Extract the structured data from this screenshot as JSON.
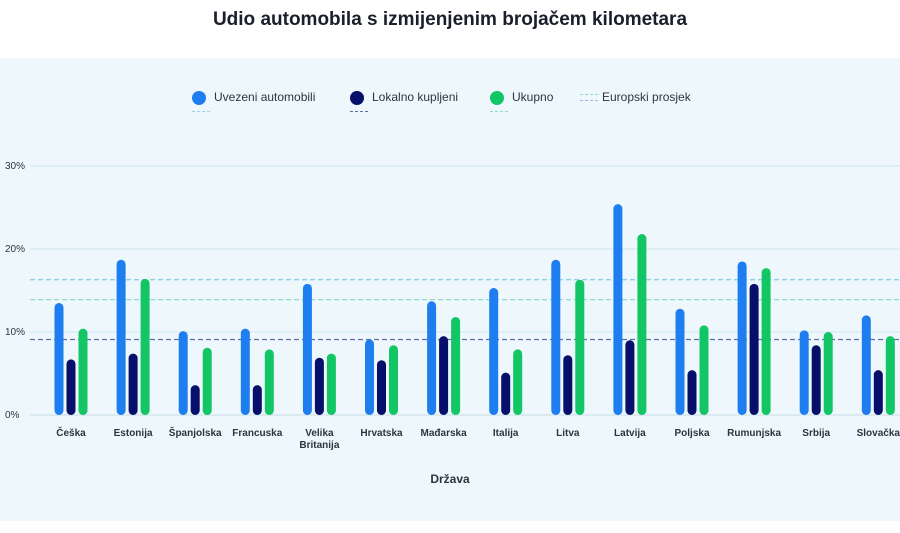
{
  "page": {
    "title": "Udio automobila s izmijenjenim brojačem kilometara"
  },
  "legend": {
    "imported": "Uvezeni automobili",
    "local": "Lokalno kupljeni",
    "total": "Ukupno",
    "eu": "Europski prosjek"
  },
  "colors": {
    "imported": "#1e7ef0",
    "local": "#06106a",
    "total": "#12c565",
    "background": "#eef8fc"
  },
  "chart_data": {
    "type": "bar",
    "xlabel": "Država",
    "ylabel": "",
    "ylim": [
      0,
      30
    ],
    "yticks": [
      "0%",
      "10%",
      "20%",
      "30%"
    ],
    "grid": true,
    "legend_position": "top",
    "categories": [
      "Češka",
      "Estonija",
      "Španjolska",
      "Francuska",
      "Velika Britanija",
      "Hrvatska",
      "Mađarska",
      "Italija",
      "Litva",
      "Latvija",
      "Poljska",
      "Rumunjska",
      "Srbija",
      "Slovačka"
    ],
    "category_lines": [
      [
        "Češka"
      ],
      [
        "Estonija"
      ],
      [
        "Španjolska"
      ],
      [
        "Francuska"
      ],
      [
        "Velika",
        "Britanija"
      ],
      [
        "Hrvatska"
      ],
      [
        "Mađarska"
      ],
      [
        "Italija"
      ],
      [
        "Litva"
      ],
      [
        "Latvija"
      ],
      [
        "Poljska"
      ],
      [
        "Rumunjska"
      ],
      [
        "Srbija"
      ],
      [
        "Slovačka"
      ]
    ],
    "series": [
      {
        "name": "Uvezeni automobili",
        "color": "#1e7ef0",
        "values": [
          13.5,
          18.7,
          10.1,
          10.4,
          15.8,
          9.1,
          13.7,
          15.3,
          18.7,
          25.4,
          12.8,
          18.5,
          10.2,
          12.0
        ]
      },
      {
        "name": "Lokalno kupljeni",
        "color": "#06106a",
        "values": [
          6.7,
          7.4,
          3.6,
          3.6,
          6.9,
          6.6,
          9.5,
          5.1,
          7.2,
          9.0,
          5.4,
          15.8,
          8.4,
          5.4
        ]
      },
      {
        "name": "Ukupno",
        "color": "#12c565",
        "values": [
          10.4,
          16.4,
          8.1,
          7.9,
          7.4,
          8.4,
          11.8,
          7.9,
          16.3,
          21.8,
          10.8,
          17.7,
          10.0,
          9.5
        ]
      }
    ],
    "eu_average": [
      {
        "series": "Uvezeni automobili",
        "value": 16.3,
        "color": "#8ed2e3"
      },
      {
        "series": "Lokalno kupljeni",
        "value": 9.1,
        "color": "#5b6fa8"
      },
      {
        "series": "Ukupno",
        "value": 13.9,
        "color": "#8fdcca"
      }
    ]
  }
}
